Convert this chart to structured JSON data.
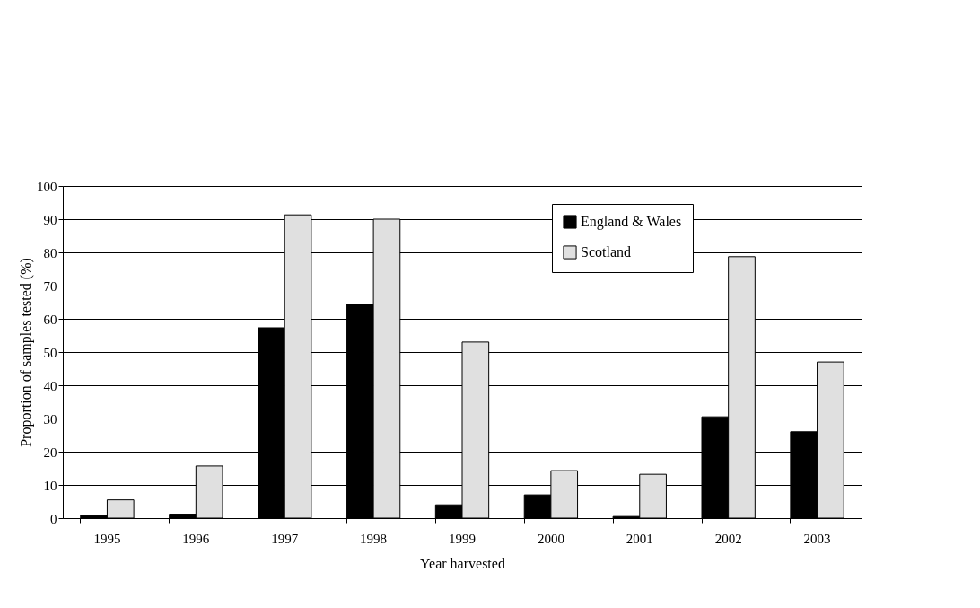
{
  "chart_data": {
    "type": "bar",
    "xlabel": "Year harvested",
    "ylabel": "Proportion of samples tested (%)",
    "categories": [
      "1995",
      "1996",
      "1997",
      "1998",
      "1999",
      "2000",
      "2001",
      "2002",
      "2003"
    ],
    "series": [
      {
        "name": "England & Wales",
        "color": "#000000",
        "values": [
          0.8,
          1.2,
          57.3,
          64.4,
          4.0,
          7.0,
          0.5,
          30.5,
          26.0
        ]
      },
      {
        "name": "Scotland",
        "color": "#e0e0e0",
        "values": [
          5.5,
          15.7,
          91.3,
          90.0,
          53.0,
          14.3,
          13.2,
          78.7,
          47.0
        ]
      }
    ],
    "ylim": [
      0,
      100
    ],
    "yticks": [
      0,
      10,
      20,
      30,
      40,
      50,
      60,
      70,
      80,
      90,
      100
    ],
    "grid": "y",
    "legend": "top right"
  }
}
